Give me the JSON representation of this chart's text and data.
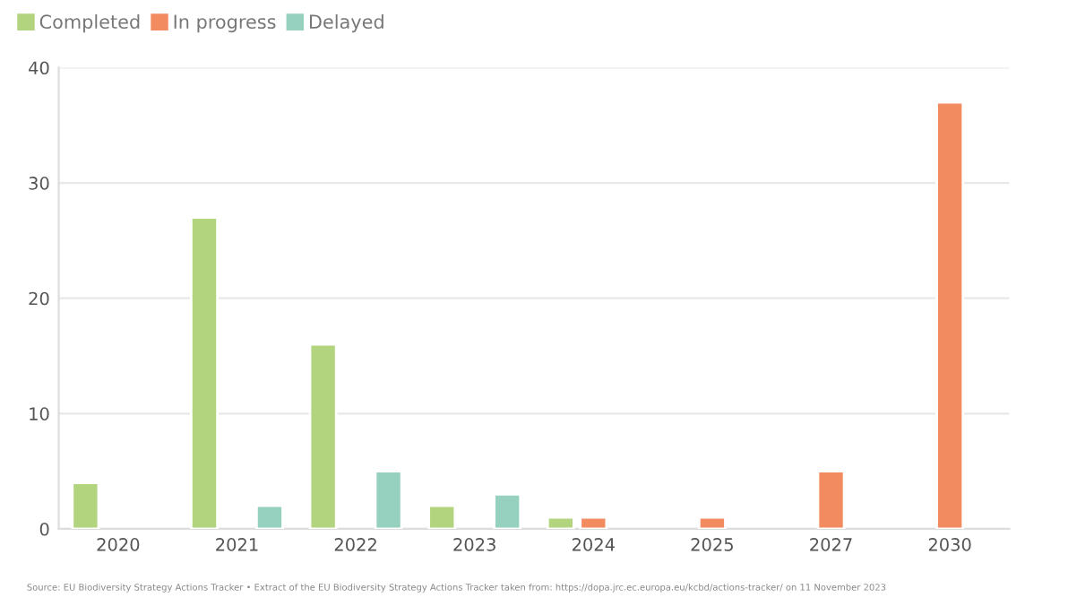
{
  "chart_data": {
    "type": "bar",
    "categories": [
      "2020",
      "2021",
      "2022",
      "2023",
      "2024",
      "2025",
      "2027",
      "2030"
    ],
    "series": [
      {
        "name": "Completed",
        "color": "#b2d47f",
        "values": [
          4,
          27,
          16,
          2,
          1,
          null,
          null,
          null
        ]
      },
      {
        "name": "In progress",
        "color": "#f28c60",
        "values": [
          null,
          null,
          null,
          null,
          1,
          1,
          5,
          37
        ]
      },
      {
        "name": "Delayed",
        "color": "#96d0bf",
        "values": [
          null,
          2,
          5,
          3,
          null,
          null,
          null,
          null
        ]
      }
    ],
    "ylim": [
      0,
      40
    ],
    "yticks": [
      0,
      10,
      20,
      30,
      40
    ],
    "grid": "y",
    "legend": "top left",
    "annotations": [
      "Source: EU Biodiversity Strategy Actions Tracker • Extract of the EU Biodiversity Strategy Actions Tracker taken from: https://dopa.jrc.ec.europa.eu/kcbd/actions-tracker/ on 11 November 2023"
    ]
  }
}
